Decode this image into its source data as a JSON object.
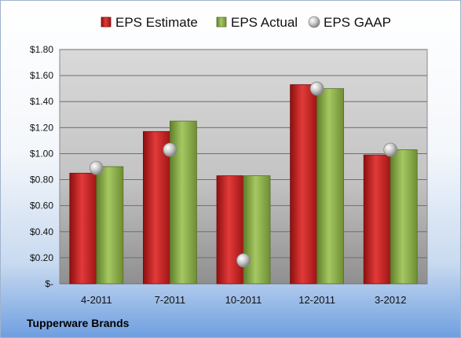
{
  "company": "Tupperware Brands",
  "colors": {
    "estimate": "#cc1f1f",
    "actual": "#8fb34a",
    "gaap": "#c8c8c8"
  },
  "chart_data": {
    "type": "bar",
    "categories": [
      "4-2011",
      "7-2011",
      "10-2011",
      "12-2011",
      "3-2012"
    ],
    "series": [
      {
        "name": "EPS Estimate",
        "values": [
          0.85,
          1.17,
          0.83,
          1.53,
          0.99
        ]
      },
      {
        "name": "EPS Actual",
        "values": [
          0.9,
          1.25,
          0.83,
          1.5,
          1.03
        ]
      },
      {
        "name": "EPS GAAP",
        "type": "scatter",
        "values": [
          0.89,
          1.03,
          0.18,
          1.5,
          1.03
        ]
      }
    ],
    "y_ticks": [
      "$-",
      "$0.20",
      "$0.40",
      "$0.60",
      "$0.80",
      "$1.00",
      "$1.20",
      "$1.40",
      "$1.60",
      "$1.80"
    ],
    "ylim": [
      0,
      1.8
    ],
    "grid": true,
    "legend": "top"
  }
}
